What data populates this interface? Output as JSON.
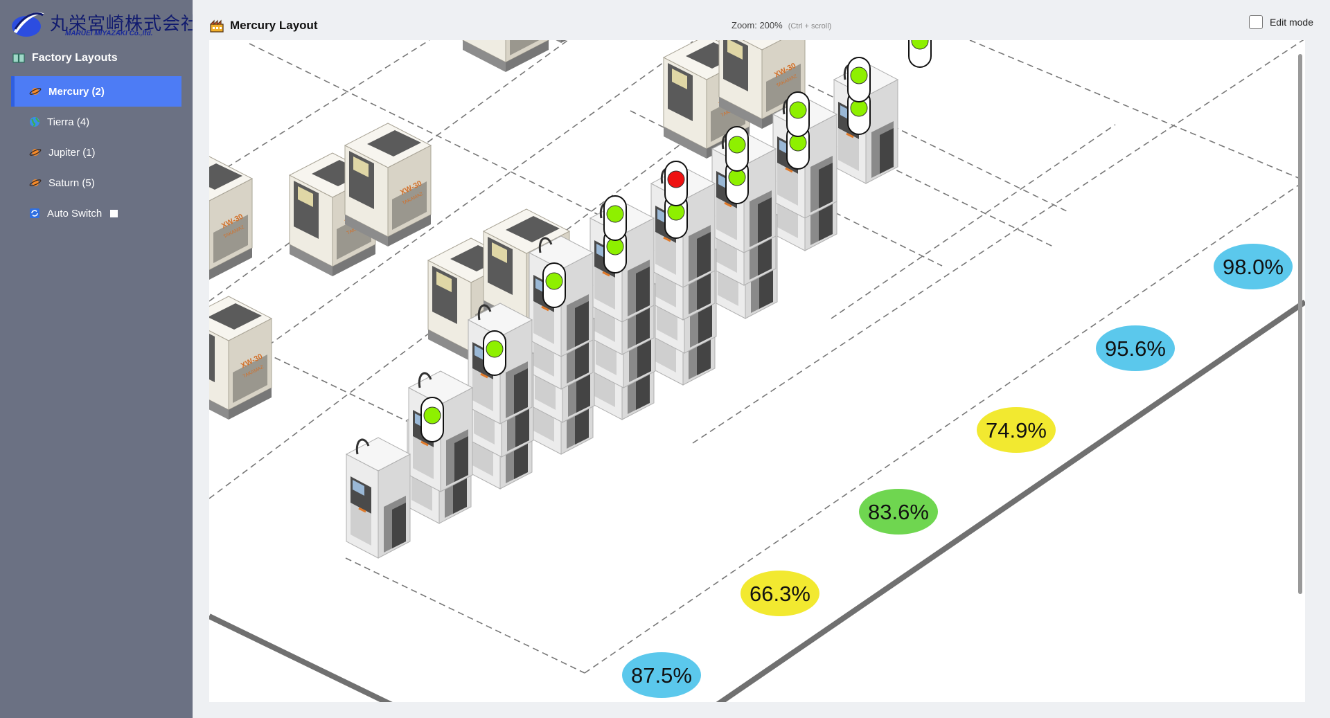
{
  "brand": {
    "name_jp": "丸栄宮崎株式会社",
    "name_en": "MARUEI MIYAZAKI Co.,ltd."
  },
  "sidebar": {
    "section_title": "Factory Layouts",
    "items": [
      {
        "label": "Mercury (2)",
        "icon": "planet-icon",
        "active": true
      },
      {
        "label": "Tierra (4)",
        "icon": "globe-icon",
        "active": false
      },
      {
        "label": "Jupiter (1)",
        "icon": "planet-icon",
        "active": false
      },
      {
        "label": "Saturn (5)",
        "icon": "planet-icon",
        "active": false
      },
      {
        "label": "Auto Switch",
        "icon": "auto-switch-icon",
        "active": false
      }
    ]
  },
  "header": {
    "title": "Mercury Layout",
    "zoom": "Zoom: 200%",
    "zoom_hint": "(Ctrl + scroll)",
    "edit_mode_label": "Edit mode",
    "edit_mode_checked": false
  },
  "layout": {
    "machine_model_label": "XW-30",
    "machine_brand_label": "TAKAMAZ",
    "rows": [
      {
        "utilization": "87.5%",
        "status_color": "#5bc8ec"
      },
      {
        "utilization": "66.3%",
        "status_color": "#f2e930"
      },
      {
        "utilization": "83.6%",
        "status_color": "#6fd650"
      },
      {
        "utilization": "74.9%",
        "status_color": "#f2e930"
      },
      {
        "utilization": "95.6%",
        "status_color": "#5bc8ec"
      },
      {
        "utilization": "98.0%",
        "status_color": "#5bc8ec"
      }
    ],
    "lamp_colors": {
      "running": "#8ef000",
      "stopped": "#ee1111"
    }
  }
}
